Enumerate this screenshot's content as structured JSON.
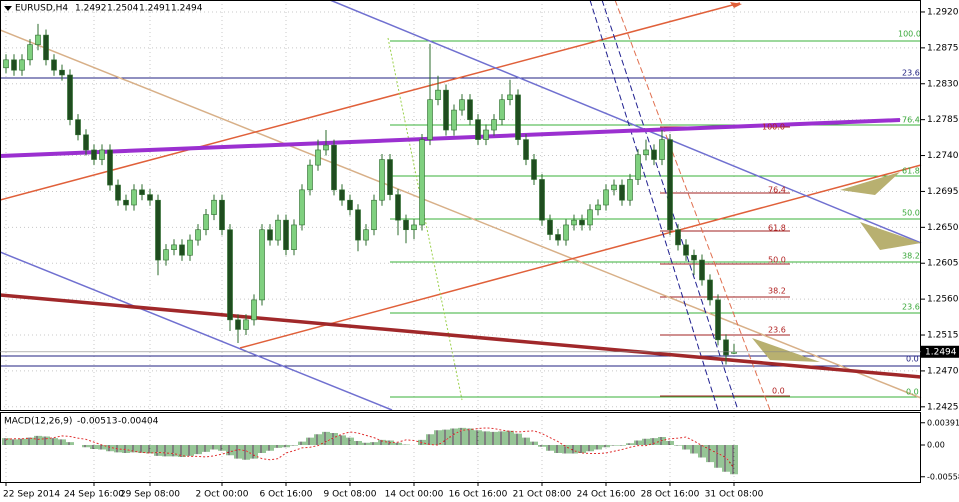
{
  "chart_data": {
    "type": "candlestick",
    "symbol": "EURUSD,H4",
    "indicator_title": "MACD(12,26,9)",
    "indicator_values": [
      -0.00513,
      -0.00404
    ],
    "bull_color": "#7fd07f",
    "bear_color": "#1f4d1f",
    "wick_color": "#2b6b2b",
    "grid": true,
    "ylim": [
      1.2421,
      1.2935
    ],
    "yticks": [
      {
        "value": 1.292,
        "label": "1.2920"
      },
      1.2875,
      {
        "value": 1.283,
        "label": "1.2830"
      },
      1.2785,
      {
        "value": 1.274,
        "label": "1.2740"
      },
      1.2695,
      {
        "value": 1.265,
        "label": "1.2650"
      },
      1.2605,
      {
        "value": 1.256,
        "label": "1.2560"
      },
      1.2515,
      {
        "value": 1.247,
        "label": "1.2470"
      },
      1.2425
    ],
    "categories": [
      "22 Sep 2014",
      null,
      null,
      null,
      null,
      null,
      null,
      null,
      null,
      null,
      null,
      "24 Sep 16:00",
      null,
      null,
      null,
      null,
      null,
      null,
      "29 Sep 08:00",
      null,
      null,
      null,
      null,
      null,
      null,
      null,
      null,
      "2 Oct 00:00",
      null,
      null,
      null,
      null,
      null,
      null,
      null,
      "6 Oct 16:00",
      null,
      null,
      null,
      null,
      null,
      null,
      null,
      "9 Oct 08:00",
      null,
      null,
      null,
      null,
      null,
      null,
      null,
      "14 Oct 00:00",
      null,
      null,
      null,
      null,
      null,
      null,
      null,
      "16 Oct 16:00",
      null,
      null,
      null,
      null,
      null,
      null,
      null,
      "21 Oct 08:00",
      null,
      null,
      null,
      null,
      null,
      null,
      null,
      "24 Oct 16:00",
      null,
      null,
      null,
      null,
      null,
      null,
      null,
      "28 Oct 16:00",
      null,
      null,
      null,
      null,
      null,
      null,
      null,
      "31 Oct 08:00"
    ],
    "ohlc": [
      [
        1.285,
        1.2867,
        1.2843,
        1.286
      ],
      [
        1.286,
        1.2867,
        1.284,
        1.2847
      ],
      [
        1.2847,
        1.2867,
        1.284,
        1.286
      ],
      [
        1.286,
        1.2886,
        1.2853,
        1.2879
      ],
      [
        1.2879,
        1.2905,
        1.2872,
        1.2891
      ],
      [
        1.2891,
        1.2898,
        1.2853,
        1.286
      ],
      [
        1.286,
        1.2867,
        1.284,
        1.2847
      ],
      [
        1.2847,
        1.2854,
        1.2834,
        1.2841
      ],
      [
        1.2841,
        1.2848,
        1.2778,
        1.2785
      ],
      [
        1.2785,
        1.2792,
        1.2759,
        1.2766
      ],
      [
        1.2766,
        1.2773,
        1.274,
        1.2747
      ],
      [
        1.2747,
        1.2754,
        1.2728,
        1.2735
      ],
      [
        1.2735,
        1.2754,
        1.2728,
        1.2747
      ],
      [
        1.2747,
        1.2754,
        1.2696,
        1.2703
      ],
      [
        1.2703,
        1.271,
        1.2677,
        1.2684
      ],
      [
        1.2684,
        1.2691,
        1.2671,
        1.2678
      ],
      [
        1.2678,
        1.2704,
        1.2671,
        1.2697
      ],
      [
        1.2697,
        1.2704,
        1.2684,
        1.2691
      ],
      [
        1.2691,
        1.2698,
        1.2677,
        1.2684
      ],
      [
        1.2684,
        1.2691,
        1.259,
        1.2609
      ],
      [
        1.2609,
        1.2629,
        1.2602,
        1.2622
      ],
      [
        1.2622,
        1.2635,
        1.2615,
        1.2628
      ],
      [
        1.2628,
        1.2635,
        1.2608,
        1.2615
      ],
      [
        1.2615,
        1.2641,
        1.2608,
        1.2634
      ],
      [
        1.2634,
        1.2654,
        1.2627,
        1.2647
      ],
      [
        1.2647,
        1.2673,
        1.264,
        1.2666
      ],
      [
        1.2666,
        1.2691,
        1.2659,
        1.2684
      ],
      [
        1.2684,
        1.2691,
        1.264,
        1.2647
      ],
      [
        1.2647,
        1.2654,
        1.252,
        1.2534
      ],
      [
        1.2534,
        1.2541,
        1.2505,
        1.2522
      ],
      [
        1.2522,
        1.2541,
        1.2515,
        1.2534
      ],
      [
        1.2534,
        1.2566,
        1.2527,
        1.2559
      ],
      [
        1.2559,
        1.2654,
        1.2552,
        1.2647
      ],
      [
        1.2647,
        1.2654,
        1.2627,
        1.2634
      ],
      [
        1.2634,
        1.2666,
        1.2627,
        1.2659
      ],
      [
        1.2659,
        1.2666,
        1.2615,
        1.2622
      ],
      [
        1.2622,
        1.266,
        1.2615,
        1.2653
      ],
      [
        1.2653,
        1.2704,
        1.2646,
        1.2697
      ],
      [
        1.2697,
        1.2735,
        1.269,
        1.2728
      ],
      [
        1.2728,
        1.276,
        1.2721,
        1.2747
      ],
      [
        1.2747,
        1.2772,
        1.274,
        1.2753
      ],
      [
        1.2753,
        1.276,
        1.269,
        1.2697
      ],
      [
        1.2697,
        1.2704,
        1.2677,
        1.2684
      ],
      [
        1.2684,
        1.2691,
        1.2665,
        1.2672
      ],
      [
        1.2672,
        1.2679,
        1.262,
        1.2634
      ],
      [
        1.2634,
        1.2654,
        1.2627,
        1.2647
      ],
      [
        1.2647,
        1.2691,
        1.264,
        1.2684
      ],
      [
        1.2684,
        1.2742,
        1.2677,
        1.2735
      ],
      [
        1.2735,
        1.2742,
        1.2684,
        1.2691
      ],
      [
        1.2691,
        1.2698,
        1.264,
        1.2659
      ],
      [
        1.2659,
        1.2666,
        1.263,
        1.2647
      ],
      [
        1.2647,
        1.266,
        1.2635,
        1.2653
      ],
      [
        1.2653,
        1.2767,
        1.2646,
        1.276
      ],
      [
        1.276,
        1.288,
        1.2753,
        1.281
      ],
      [
        1.281,
        1.284,
        1.2803,
        1.2822
      ],
      [
        1.2822,
        1.2829,
        1.2765,
        1.2772
      ],
      [
        1.2772,
        1.2804,
        1.2765,
        1.2797
      ],
      [
        1.2797,
        1.2817,
        1.279,
        1.281
      ],
      [
        1.281,
        1.2817,
        1.2778,
        1.2785
      ],
      [
        1.2785,
        1.2792,
        1.2753,
        1.276
      ],
      [
        1.276,
        1.2779,
        1.2753,
        1.2772
      ],
      [
        1.2772,
        1.2792,
        1.2765,
        1.2785
      ],
      [
        1.2785,
        1.2817,
        1.2778,
        1.281
      ],
      [
        1.281,
        1.2835,
        1.2803,
        1.2816
      ],
      [
        1.2816,
        1.2823,
        1.2753,
        1.276
      ],
      [
        1.276,
        1.2767,
        1.2728,
        1.2735
      ],
      [
        1.2735,
        1.2742,
        1.2703,
        1.271
      ],
      [
        1.271,
        1.2717,
        1.2652,
        1.2659
      ],
      [
        1.2659,
        1.2666,
        1.2634,
        1.2641
      ],
      [
        1.2641,
        1.2648,
        1.2627,
        1.2634
      ],
      [
        1.2634,
        1.266,
        1.2627,
        1.2653
      ],
      [
        1.2653,
        1.2666,
        1.2646,
        1.2659
      ],
      [
        1.2659,
        1.2666,
        1.2646,
        1.2653
      ],
      [
        1.2653,
        1.2679,
        1.2646,
        1.2672
      ],
      [
        1.2672,
        1.2685,
        1.2665,
        1.2678
      ],
      [
        1.2678,
        1.2704,
        1.2671,
        1.2697
      ],
      [
        1.2697,
        1.271,
        1.269,
        1.2703
      ],
      [
        1.2703,
        1.271,
        1.2677,
        1.2684
      ],
      [
        1.2684,
        1.2717,
        1.2677,
        1.271
      ],
      [
        1.271,
        1.2748,
        1.2703,
        1.2741
      ],
      [
        1.2741,
        1.276,
        1.2734,
        1.2747
      ],
      [
        1.2747,
        1.2754,
        1.2728,
        1.2735
      ],
      [
        1.2735,
        1.2772,
        1.2728,
        1.276
      ],
      [
        1.276,
        1.2767,
        1.264,
        1.2647
      ],
      [
        1.2647,
        1.2654,
        1.2621,
        1.2628
      ],
      [
        1.2628,
        1.2635,
        1.2608,
        1.2615
      ],
      [
        1.2615,
        1.2622,
        1.259,
        1.2609
      ],
      [
        1.2609,
        1.2616,
        1.2577,
        1.2584
      ],
      [
        1.2584,
        1.2591,
        1.2552,
        1.2559
      ],
      [
        1.2559,
        1.2566,
        1.2502,
        1.2509
      ],
      [
        1.2509,
        1.2516,
        1.2478,
        1.249
      ],
      [
        1.2492,
        1.2504,
        1.2491,
        1.2494
      ]
    ],
    "macd": {
      "ylim": [
        -0.0065,
        0.0058
      ],
      "yticks": [
        0.00391,
        {
          "value": 0,
          "label": "0.00"
        },
        -0.00558
      ],
      "hist_color": "#2e8b2e",
      "signal_color": "#e03030",
      "histogram": [
        0.0012,
        0.001,
        0.0011,
        0.0013,
        0.0016,
        0.0015,
        0.0012,
        0.001,
        0.0005,
        0.0,
        -0.0004,
        -0.0007,
        -0.0008,
        -0.0011,
        -0.0013,
        -0.0014,
        -0.0013,
        -0.0014,
        -0.0015,
        -0.0019,
        -0.002,
        -0.002,
        -0.0021,
        -0.0019,
        -0.0016,
        -0.0012,
        -0.0008,
        -0.001,
        -0.0018,
        -0.0024,
        -0.0026,
        -0.0024,
        -0.0014,
        -0.001,
        -0.0005,
        -0.0004,
        -0.0001,
        0.0006,
        0.0013,
        0.0019,
        0.0023,
        0.0021,
        0.0017,
        0.0013,
        0.0007,
        0.0004,
        0.0005,
        0.0009,
        0.0008,
        0.0004,
        0.0001,
        0.0,
        0.0009,
        0.0019,
        0.0026,
        0.0027,
        0.0029,
        0.003,
        0.0029,
        0.0026,
        0.0024,
        0.0023,
        0.0024,
        0.0025,
        0.002,
        0.0013,
        0.0006,
        -0.0003,
        -0.001,
        -0.0014,
        -0.0015,
        -0.0015,
        -0.0014,
        -0.0011,
        -0.0008,
        -0.0004,
        -0.0001,
        -0.0001,
        0.0003,
        0.0008,
        0.0011,
        0.0012,
        0.0014,
        0.0007,
        -0.0001,
        -0.0008,
        -0.0015,
        -0.0022,
        -0.003,
        -0.004,
        -0.0047,
        -0.00513
      ],
      "signal": [
        0.001,
        0.0011,
        0.0011,
        0.0012,
        0.001,
        0.0011,
        0.0013,
        0.0016,
        0.0015,
        0.0012,
        0.001,
        0.0005,
        0.0,
        -0.0004,
        -0.0007,
        -0.0008,
        -0.0011,
        -0.0013,
        -0.0014,
        -0.0013,
        -0.0014,
        -0.0015,
        -0.0019,
        -0.002,
        -0.002,
        -0.0021,
        -0.0019,
        -0.0016,
        -0.0012,
        -0.0008,
        -0.001,
        -0.0018,
        -0.0024,
        -0.0026,
        -0.0024,
        -0.0014,
        -0.001,
        -0.0005,
        -0.0004,
        -0.0001,
        0.0006,
        0.0013,
        0.0019,
        0.0023,
        0.0021,
        0.0017,
        0.0013,
        0.0007,
        0.0004,
        0.0005,
        0.0009,
        0.0008,
        0.0004,
        0.0001,
        0.0,
        0.0009,
        0.0019,
        0.0026,
        0.0027,
        0.0029,
        0.003,
        0.0029,
        0.0026,
        0.0024,
        0.0023,
        0.0024,
        0.0025,
        0.002,
        0.0013,
        0.0006,
        -0.0003,
        -0.001,
        -0.0014,
        -0.0015,
        -0.0015,
        -0.0014,
        -0.0011,
        -0.0008,
        -0.0004,
        -0.0001,
        -0.0001,
        0.0003,
        0.0008,
        0.0011,
        0.0012,
        0.0014,
        0.0007,
        -0.0001,
        -0.0008,
        -0.0015,
        -0.0022,
        -0.00404
      ]
    },
    "fib_green_labels": [
      "100.0",
      "23.6",
      "76.4",
      "61.8",
      "50.0",
      "38.2",
      "23.6",
      "0.0",
      "0.0"
    ],
    "fib_red_labels": [
      "100.0",
      "76.4",
      "61.8",
      "50.0",
      "38.2",
      "23.6",
      "0.0"
    ]
  }
}
